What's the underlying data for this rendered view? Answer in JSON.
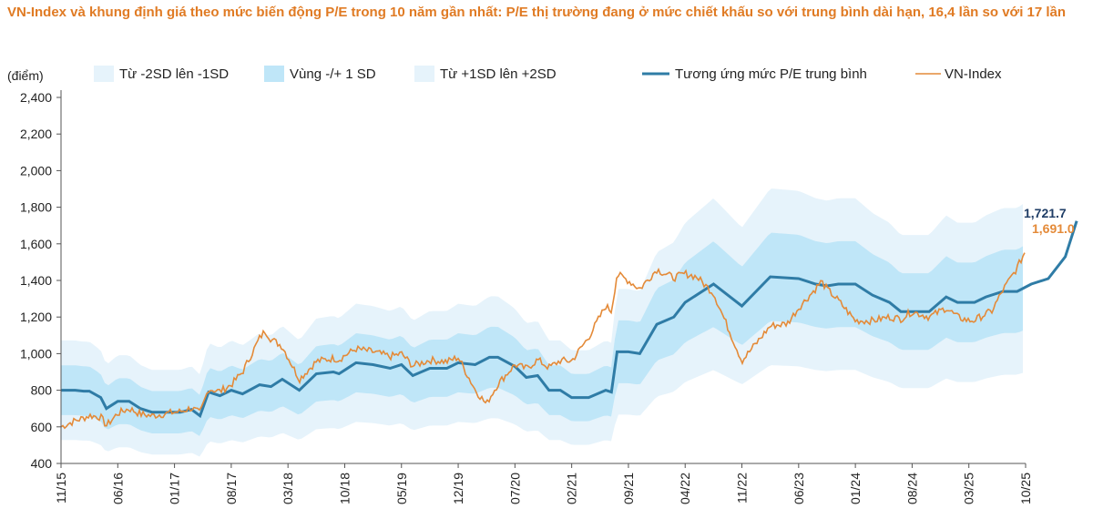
{
  "title": "VN-Index và khung định giá theo mức biến động P/E trong 10 năm gần nhất: P/E thị trường đang ở mức chiết khấu so với trung bình dài hạn, 16,4 lần so với 17 lần",
  "colors": {
    "band_outer": "#e6f3fb",
    "band_inner": "#bfe6f8",
    "mean_line": "#2f7ca6",
    "vnindex": "#e48a38",
    "mean_label": "#1f3d66",
    "vn_label": "#e48a38"
  },
  "chart_data": {
    "type": "line",
    "ylabel": "(điểm)",
    "ylim": [
      400,
      2400
    ],
    "yticks": [
      "400",
      "600",
      "800",
      "1,000",
      "1,200",
      "1,400",
      "1,600",
      "1,800",
      "2,000",
      "2,200",
      "2,400"
    ],
    "ytick_values": [
      400,
      600,
      800,
      1000,
      1200,
      1400,
      1600,
      1800,
      2000,
      2200,
      2400
    ],
    "xticks": [
      "11/15",
      "06/16",
      "01/17",
      "08/17",
      "03/18",
      "10/18",
      "05/19",
      "12/19",
      "07/20",
      "02/21",
      "09/21",
      "04/22",
      "11/22",
      "06/23",
      "01/24",
      "08/24",
      "03/25",
      "10/25"
    ],
    "x_range": [
      "2015-11",
      "2025-10"
    ],
    "grid": false,
    "legend": [
      {
        "label": "Từ -2SD lên -1SD",
        "kind": "band_outer"
      },
      {
        "label": "Vùng -/+ 1 SD",
        "kind": "band_inner"
      },
      {
        "label": "Từ +1SD lên +2SD",
        "kind": "band_outer"
      },
      {
        "label": "Tương ứng mức P/E trung bình",
        "kind": "mean_line"
      },
      {
        "label": "VN-Index",
        "kind": "vnindex"
      }
    ],
    "end_labels": {
      "mean": "1,721.7",
      "vnindex": "1,691.0"
    },
    "series": [
      {
        "name": "Tương ứng mức P/E trung bình",
        "x": [
          0,
          0.25,
          0.4,
          0.5,
          0.7,
          0.8,
          1.0,
          1.2,
          1.4,
          1.6,
          1.8,
          2.0,
          2.1,
          2.3,
          2.45,
          2.6,
          2.8,
          3.0,
          3.2,
          3.5,
          3.7,
          3.9,
          4.2,
          4.5,
          4.8,
          4.9,
          5.2,
          5.5,
          5.8,
          6.0,
          6.2,
          6.5,
          6.8,
          7.0,
          7.3,
          7.55,
          7.7,
          8.0,
          8.2,
          8.4,
          8.6,
          8.8,
          9.0,
          9.05,
          9.3,
          9.6,
          9.7,
          9.8,
          10.0,
          10.2,
          10.5,
          10.8,
          11.0,
          11.5,
          12.0,
          12.5,
          13.0,
          13.3,
          13.5,
          13.7,
          14.0,
          14.3,
          14.6,
          14.8,
          15.1,
          15.3,
          15.6,
          15.8,
          16.1,
          16.3,
          16.6,
          16.85,
          17.1,
          17.4,
          17.7,
          17.9
        ],
        "values": [
          800,
          800,
          795,
          795,
          760,
          700,
          740,
          740,
          700,
          680,
          680,
          680,
          680,
          695,
          660,
          790,
          770,
          800,
          780,
          830,
          820,
          860,
          800,
          890,
          900,
          890,
          950,
          940,
          920,
          940,
          880,
          920,
          920,
          950,
          940,
          980,
          980,
          930,
          870,
          880,
          800,
          800,
          760,
          760,
          760,
          800,
          790,
          1010,
          1010,
          1000,
          1160,
          1200,
          1280,
          1380,
          1260,
          1420,
          1410,
          1380,
          1370,
          1380,
          1380,
          1320,
          1280,
          1230,
          1230,
          1230,
          1310,
          1280,
          1280,
          1310,
          1340,
          1340,
          1380,
          1410,
          1530,
          1725
        ],
        "comment_note": ""
      }
    ]
  }
}
